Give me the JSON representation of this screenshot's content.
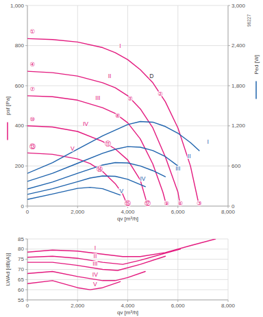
{
  "chart_data": [
    {
      "type": "line",
      "subtitle": "96227",
      "xlabel": "qv [m³/h]",
      "ylabel": "psf [Pa]",
      "y2label": "Ped [W]",
      "xlim": [
        0,
        8000
      ],
      "xticks": [
        0,
        {
          "value": 2000,
          "label": "2,000"
        },
        {
          "value": 4000,
          "label": "4,000"
        },
        {
          "value": 6000,
          "label": "6,000"
        },
        {
          "value": 8000,
          "label": "8,000"
        }
      ],
      "ylim": [
        0,
        1000
      ],
      "yticks": [
        0,
        200,
        400,
        600,
        800,
        {
          "value": 1000,
          "label": "1,000"
        }
      ],
      "y2lim": [
        0,
        3000
      ],
      "y2ticks": [
        0,
        600,
        {
          "value": 1200,
          "label": "1,200"
        },
        {
          "value": 1800,
          "label": "1,800"
        },
        {
          "value": 2400,
          "label": "2,400"
        },
        {
          "value": 3000,
          "label": "3,000"
        }
      ],
      "grid": true,
      "series": [
        {
          "color": "#e3197e",
          "x": [
            0,
            1000,
            2000,
            3000,
            3500,
            4000,
            4500,
            5000,
            5500,
            6000,
            6500,
            6850
          ],
          "values": [
            835,
            830,
            818,
            790,
            765,
            730,
            680,
            615,
            520,
            390,
            200,
            0
          ]
        },
        {
          "color": "#e3197e",
          "x": [
            0,
            1000,
            2000,
            3000,
            3500,
            4000,
            4500,
            5000,
            5500,
            6000,
            6100
          ],
          "values": [
            672,
            665,
            648,
            615,
            590,
            550,
            485,
            390,
            245,
            70,
            0
          ]
        },
        {
          "color": "#e3197e",
          "x": [
            0,
            1000,
            2000,
            3000,
            3500,
            4000,
            4500,
            5000,
            5400,
            5550
          ],
          "values": [
            550,
            545,
            528,
            490,
            462,
            415,
            335,
            210,
            70,
            0
          ]
        },
        {
          "color": "#e3197e",
          "x": [
            0,
            1000,
            2000,
            3000,
            3500,
            4000,
            4500,
            4800
          ],
          "values": [
            400,
            394,
            372,
            322,
            285,
            230,
            130,
            0
          ]
        },
        {
          "color": "#e3197e",
          "x": [
            0,
            1000,
            2000,
            2500,
            3000,
            3500,
            3800,
            4000
          ],
          "values": [
            265,
            258,
            235,
            212,
            172,
            112,
            60,
            0
          ]
        },
        {
          "color": "#1e63ad",
          "axis": "y2",
          "x": [
            0,
            1000,
            2000,
            3000,
            4000,
            4500,
            5000,
            5500,
            6000,
            6500,
            6850
          ],
          "values": [
            490,
            650,
            850,
            1050,
            1220,
            1265,
            1255,
            1190,
            1090,
            950,
            830
          ]
        },
        {
          "color": "#1e63ad",
          "axis": "y2",
          "x": [
            0,
            1000,
            2000,
            3000,
            3500,
            4000,
            4500,
            5000,
            5500,
            6000
          ],
          "values": [
            370,
            490,
            640,
            790,
            850,
            890,
            880,
            830,
            740,
            600
          ]
        },
        {
          "color": "#1e63ad",
          "axis": "y2",
          "x": [
            0,
            1000,
            2000,
            3000,
            3500,
            4000,
            4500,
            5000,
            5500
          ],
          "values": [
            255,
            360,
            490,
            615,
            650,
            645,
            600,
            530,
            440
          ]
        },
        {
          "color": "#1e63ad",
          "axis": "y2",
          "x": [
            0,
            1000,
            2000,
            2500,
            3000,
            3500,
            4000,
            4700
          ],
          "values": [
            175,
            260,
            365,
            420,
            450,
            445,
            400,
            290
          ]
        },
        {
          "color": "#1e63ad",
          "axis": "y2",
          "x": [
            0,
            1000,
            2000,
            2500,
            3000,
            3700
          ],
          "values": [
            100,
            180,
            265,
            280,
            260,
            165
          ]
        }
      ],
      "annotations": [
        {
          "text": "①",
          "x": 200,
          "y": 870,
          "color": "#e3197e"
        },
        {
          "text": "④",
          "x": 200,
          "y": 705,
          "color": "#e3197e"
        },
        {
          "text": "⑦",
          "x": 200,
          "y": 583,
          "color": "#e3197e"
        },
        {
          "text": "⑩",
          "x": 200,
          "y": 433,
          "color": "#e3197e"
        },
        {
          "text": "⑬",
          "x": 200,
          "y": 298,
          "color": "#e3197e"
        },
        {
          "text": "②",
          "x": 5300,
          "y": 560,
          "color": "#e3197e"
        },
        {
          "text": "D",
          "x": 4950,
          "y": 650,
          "color": "#333333"
        },
        {
          "text": "⑤",
          "x": 4100,
          "y": 535,
          "color": "#e3197e"
        },
        {
          "text": "⑧",
          "x": 3600,
          "y": 452,
          "color": "#e3197e"
        },
        {
          "text": "⑪",
          "x": 3200,
          "y": 310,
          "color": "#e3197e"
        },
        {
          "text": "⑭",
          "x": 2870,
          "y": 185,
          "color": "#e3197e"
        },
        {
          "text": "③",
          "x": 6850,
          "y": 15,
          "color": "#e3197e"
        },
        {
          "text": "⑥",
          "x": 6100,
          "y": 15,
          "color": "#e3197e"
        },
        {
          "text": "⑨",
          "x": 5550,
          "y": 15,
          "color": "#e3197e"
        },
        {
          "text": "⑫",
          "x": 4800,
          "y": 15,
          "color": "#e3197e"
        },
        {
          "text": "⑮",
          "x": 4000,
          "y": 15,
          "color": "#e3197e"
        },
        {
          "text": "I",
          "x": 3700,
          "y": 800,
          "color": "#e3197e"
        },
        {
          "text": "II",
          "x": 3280,
          "y": 650,
          "color": "#e3197e"
        },
        {
          "text": "III",
          "x": 2810,
          "y": 540,
          "color": "#e3197e"
        },
        {
          "text": "IV",
          "x": 2320,
          "y": 410,
          "color": "#e3197e"
        },
        {
          "text": "V",
          "x": 1800,
          "y": 285,
          "color": "#e3197e"
        },
        {
          "text": "I",
          "x": 7200,
          "y": 960,
          "color": "#1e63ad",
          "axis": "y2"
        },
        {
          "text": "II",
          "x": 6450,
          "y": 750,
          "color": "#1e63ad",
          "axis": "y2"
        },
        {
          "text": "III",
          "x": 6000,
          "y": 560,
          "color": "#1e63ad",
          "axis": "y2"
        },
        {
          "text": "IV",
          "x": 4600,
          "y": 410,
          "color": "#1e63ad",
          "axis": "y2"
        },
        {
          "text": "V",
          "x": 3750,
          "y": 230,
          "color": "#1e63ad",
          "axis": "y2"
        }
      ]
    },
    {
      "type": "line",
      "xlabel": "qv [m³/h]",
      "ylabel": "LWAd [dB(A)]",
      "xlim": [
        0,
        8000
      ],
      "xticks": [
        0,
        {
          "value": 2000,
          "label": "2,000"
        },
        {
          "value": 4000,
          "label": "4,000"
        },
        {
          "value": 6000,
          "label": "6,000"
        },
        {
          "value": 8000,
          "label": "8,000"
        }
      ],
      "ylim": [
        55,
        85
      ],
      "yticks": [
        55,
        60,
        65,
        70,
        75,
        80,
        85
      ],
      "grid": true,
      "series": [
        {
          "color": "#e3197e",
          "x": [
            0,
            1000,
            2000,
            3000,
            3800,
            4500,
            5500,
            6500,
            7500
          ],
          "values": [
            78.5,
            79.5,
            79,
            77.5,
            76.3,
            76.3,
            78.3,
            81.7,
            85
          ]
        },
        {
          "color": "#e3197e",
          "x": [
            0,
            1000,
            2000,
            3000,
            3800,
            4500,
            5500,
            6100
          ],
          "values": [
            76,
            76.5,
            75.5,
            73.5,
            72.5,
            74.5,
            78,
            80
          ]
        },
        {
          "color": "#e3197e",
          "x": [
            0,
            1000,
            2000,
            3000,
            3600,
            4500,
            5500
          ],
          "values": [
            73.5,
            73.5,
            72,
            70,
            69.5,
            72.5,
            76.5
          ]
        },
        {
          "color": "#e3197e",
          "x": [
            0,
            1000,
            2000,
            3000,
            3500,
            4000,
            4700
          ],
          "values": [
            68,
            69,
            66.5,
            64.5,
            64.5,
            66,
            69
          ]
        },
        {
          "color": "#e3197e",
          "x": [
            0,
            1000,
            2000,
            2500,
            3000,
            3700
          ],
          "values": [
            63,
            64.5,
            61,
            60,
            61,
            64
          ]
        }
      ],
      "annotations": [
        {
          "text": "I",
          "x": 2700,
          "y": 80.6,
          "color": "#e3197e"
        },
        {
          "text": "II",
          "x": 2700,
          "y": 76.6,
          "color": "#e3197e"
        },
        {
          "text": "III",
          "x": 2700,
          "y": 73.0,
          "color": "#e3197e"
        },
        {
          "text": "IV",
          "x": 2700,
          "y": 67.6,
          "color": "#e3197e"
        },
        {
          "text": "V",
          "x": 2700,
          "y": 62.6,
          "color": "#e3197e"
        }
      ]
    }
  ]
}
